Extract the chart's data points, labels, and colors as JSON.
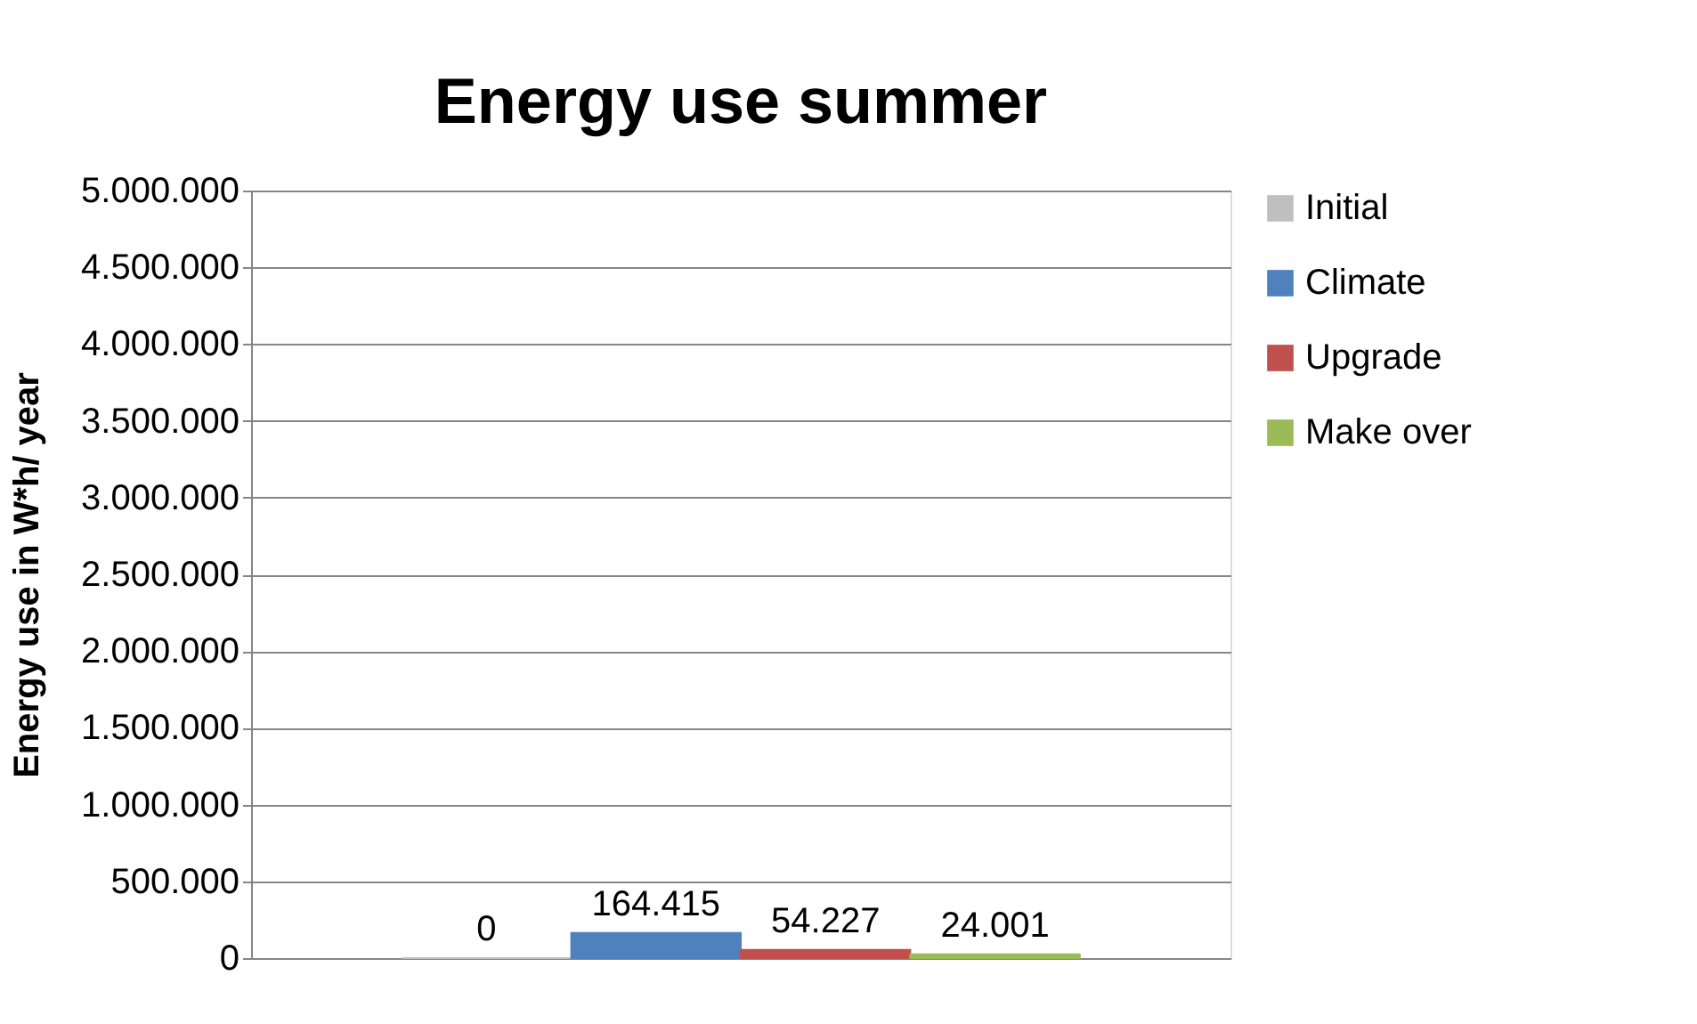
{
  "chart_data": {
    "type": "bar",
    "title": "Energy use summer",
    "ylabel": "Energy use in W*h/ year",
    "categories": [
      null
    ],
    "series": [
      {
        "name": "Initial",
        "color": "#bfbfbf",
        "values": [
          0
        ],
        "value_labels": [
          "0"
        ]
      },
      {
        "name": "Climate",
        "color": "#4f81bd",
        "values": [
          164415
        ],
        "value_labels": [
          "164.415"
        ]
      },
      {
        "name": "Upgrade",
        "color": "#c0504d",
        "values": [
          54227
        ],
        "value_labels": [
          "54.227"
        ]
      },
      {
        "name": "Make over",
        "color": "#9bbb59",
        "values": [
          24001
        ],
        "value_labels": [
          "24.001"
        ]
      }
    ],
    "ylim": [
      0,
      5000000
    ],
    "yticks": [
      0,
      {
        "value": 500000,
        "label": "500.000"
      },
      {
        "value": 1000000,
        "label": "1.000.000"
      },
      {
        "value": 1500000,
        "label": "1.500.000"
      },
      {
        "value": 2000000,
        "label": "2.000.000"
      },
      {
        "value": 2500000,
        "label": "2.500.000"
      },
      {
        "value": 3000000,
        "label": "3.000.000"
      },
      {
        "value": 3500000,
        "label": "3.500.000"
      },
      {
        "value": 4000000,
        "label": "4.000.000"
      },
      {
        "value": 4500000,
        "label": "4.500.000"
      },
      {
        "value": 5000000,
        "label": "5.000.000"
      }
    ],
    "grid": "y",
    "legend": "right"
  }
}
